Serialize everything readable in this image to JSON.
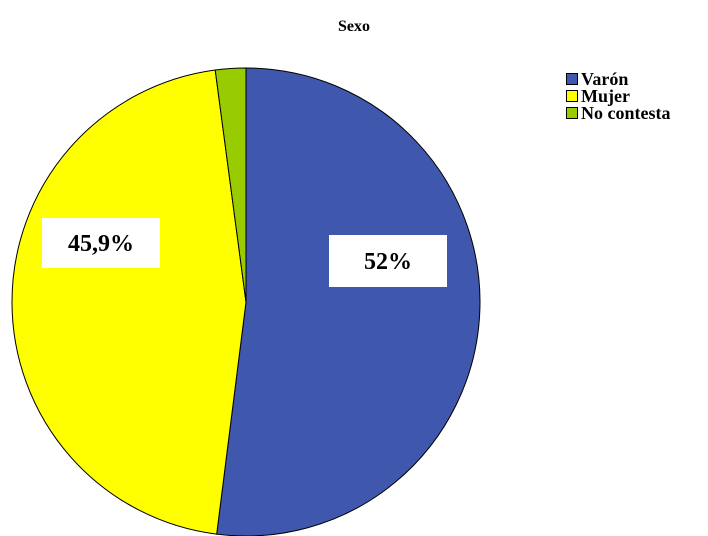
{
  "chart_data": {
    "type": "pie",
    "title": "Sexo",
    "legend_position": "top-right",
    "slices": [
      {
        "name": "Varón",
        "value": 52.0,
        "color": "#3f58ae",
        "label": "52%"
      },
      {
        "name": "Mujer",
        "value": 45.9,
        "color": "#ffff00",
        "label": "45,9%"
      },
      {
        "name": "No contesta",
        "value": 2.1,
        "color": "#99cc00",
        "label": ""
      }
    ]
  }
}
